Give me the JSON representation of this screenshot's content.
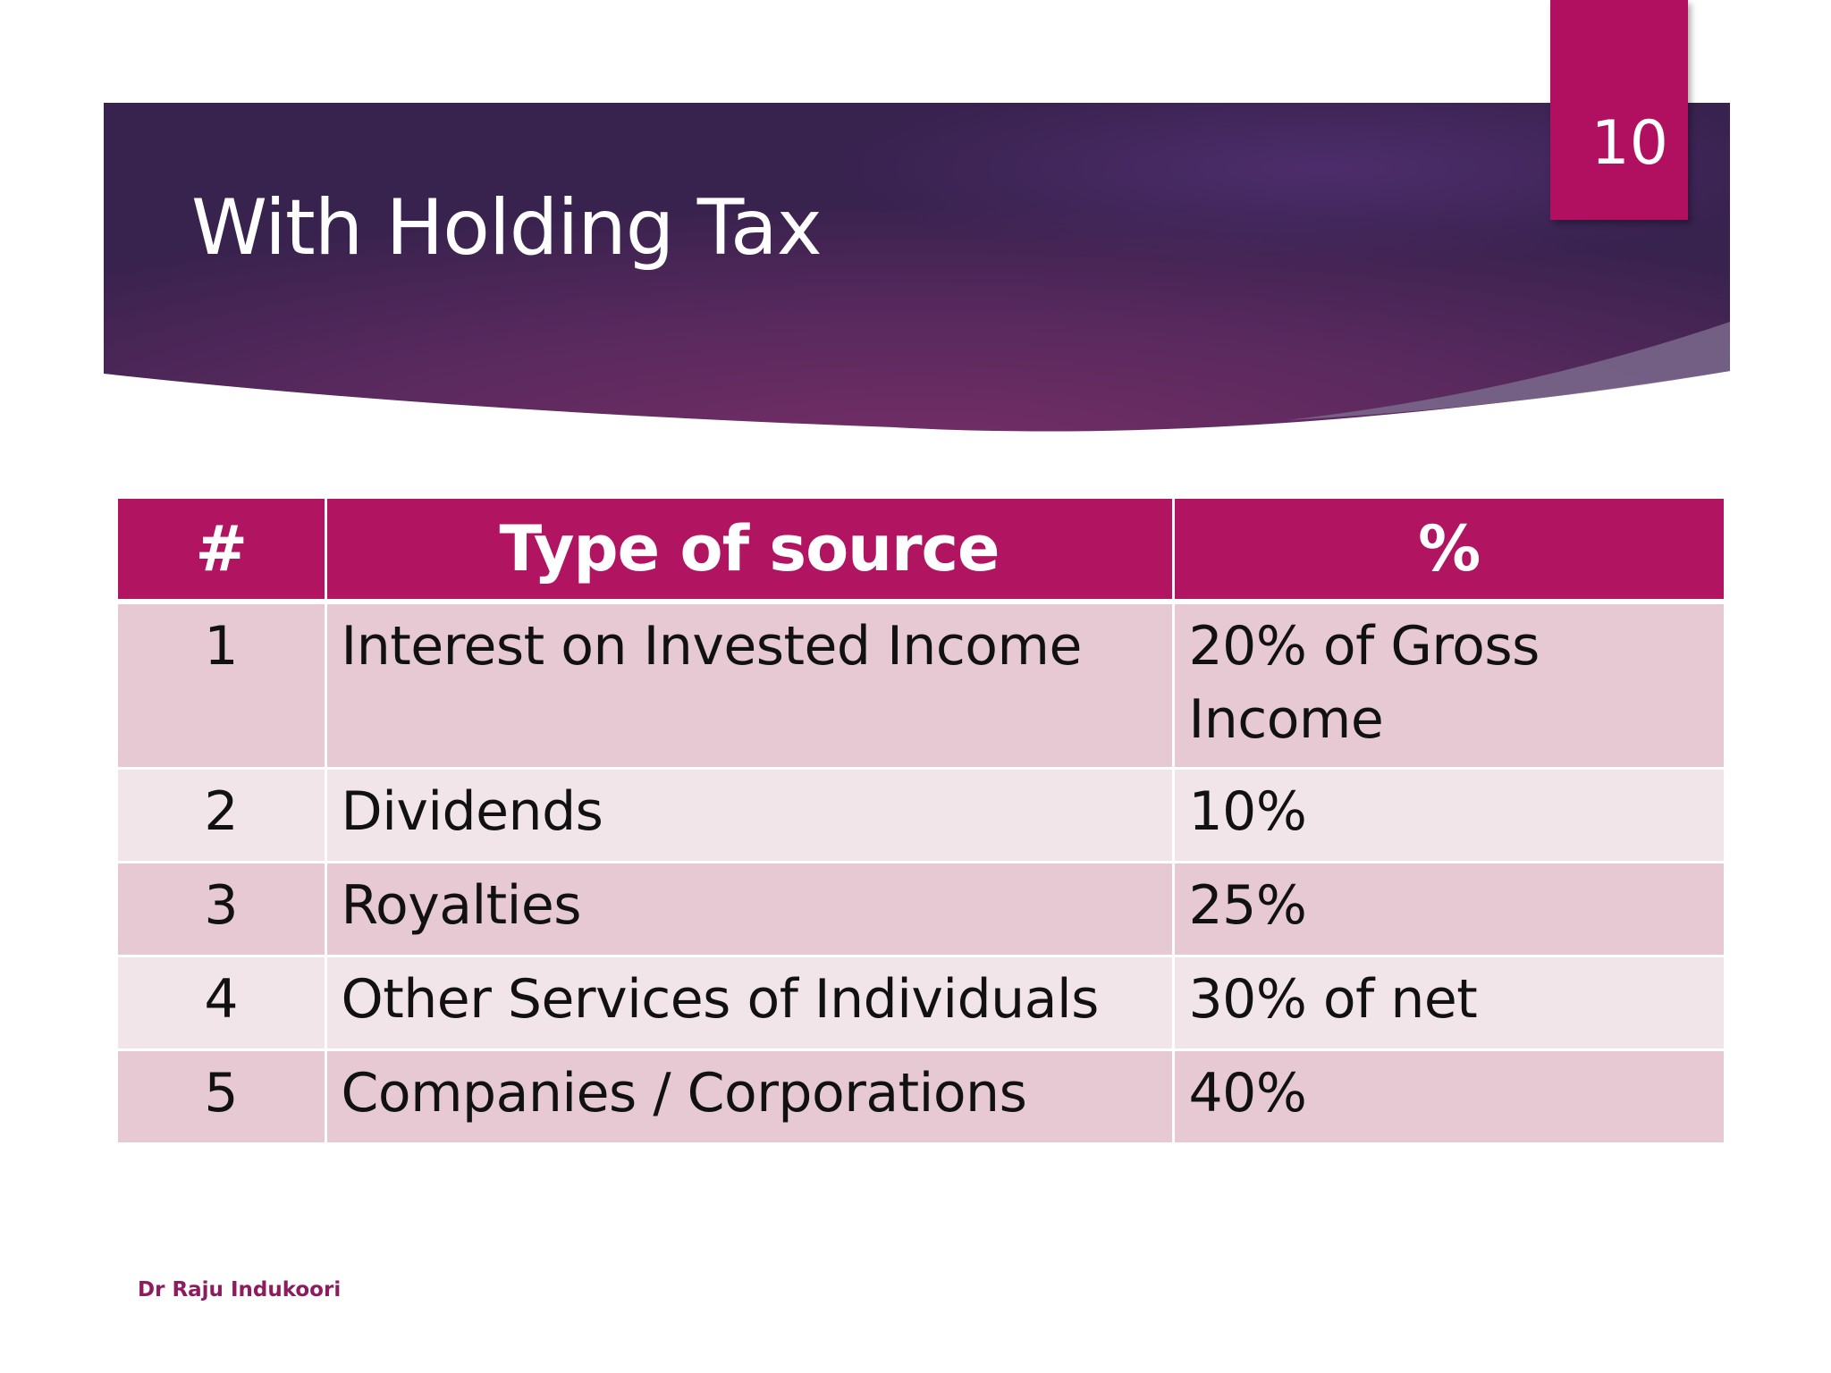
{
  "slide": {
    "title": "With Holding Tax",
    "page_number": "10",
    "author": "Dr Raju Indukoori"
  },
  "colors": {
    "banner_dark": "#3a2350",
    "banner_mid": "#6b2c62",
    "accent": "#b11461",
    "row_odd": "#e6c9d3",
    "row_even": "#f2e5ea",
    "author_text": "#8e1b5e"
  },
  "table": {
    "headers": [
      "#",
      "Type of source",
      "%"
    ],
    "rows": [
      {
        "num": "1",
        "type": "Interest on Invested Income",
        "pct": "20% of Gross Income"
      },
      {
        "num": "2",
        "type": "Dividends",
        "pct": "10%"
      },
      {
        "num": "3",
        "type": "Royalties",
        "pct": "25%"
      },
      {
        "num": "4",
        "type": "Other Services of Individuals",
        "pct": "30% of net"
      },
      {
        "num": "5",
        "type": "Companies / Corporations",
        "pct": "40%"
      }
    ]
  }
}
